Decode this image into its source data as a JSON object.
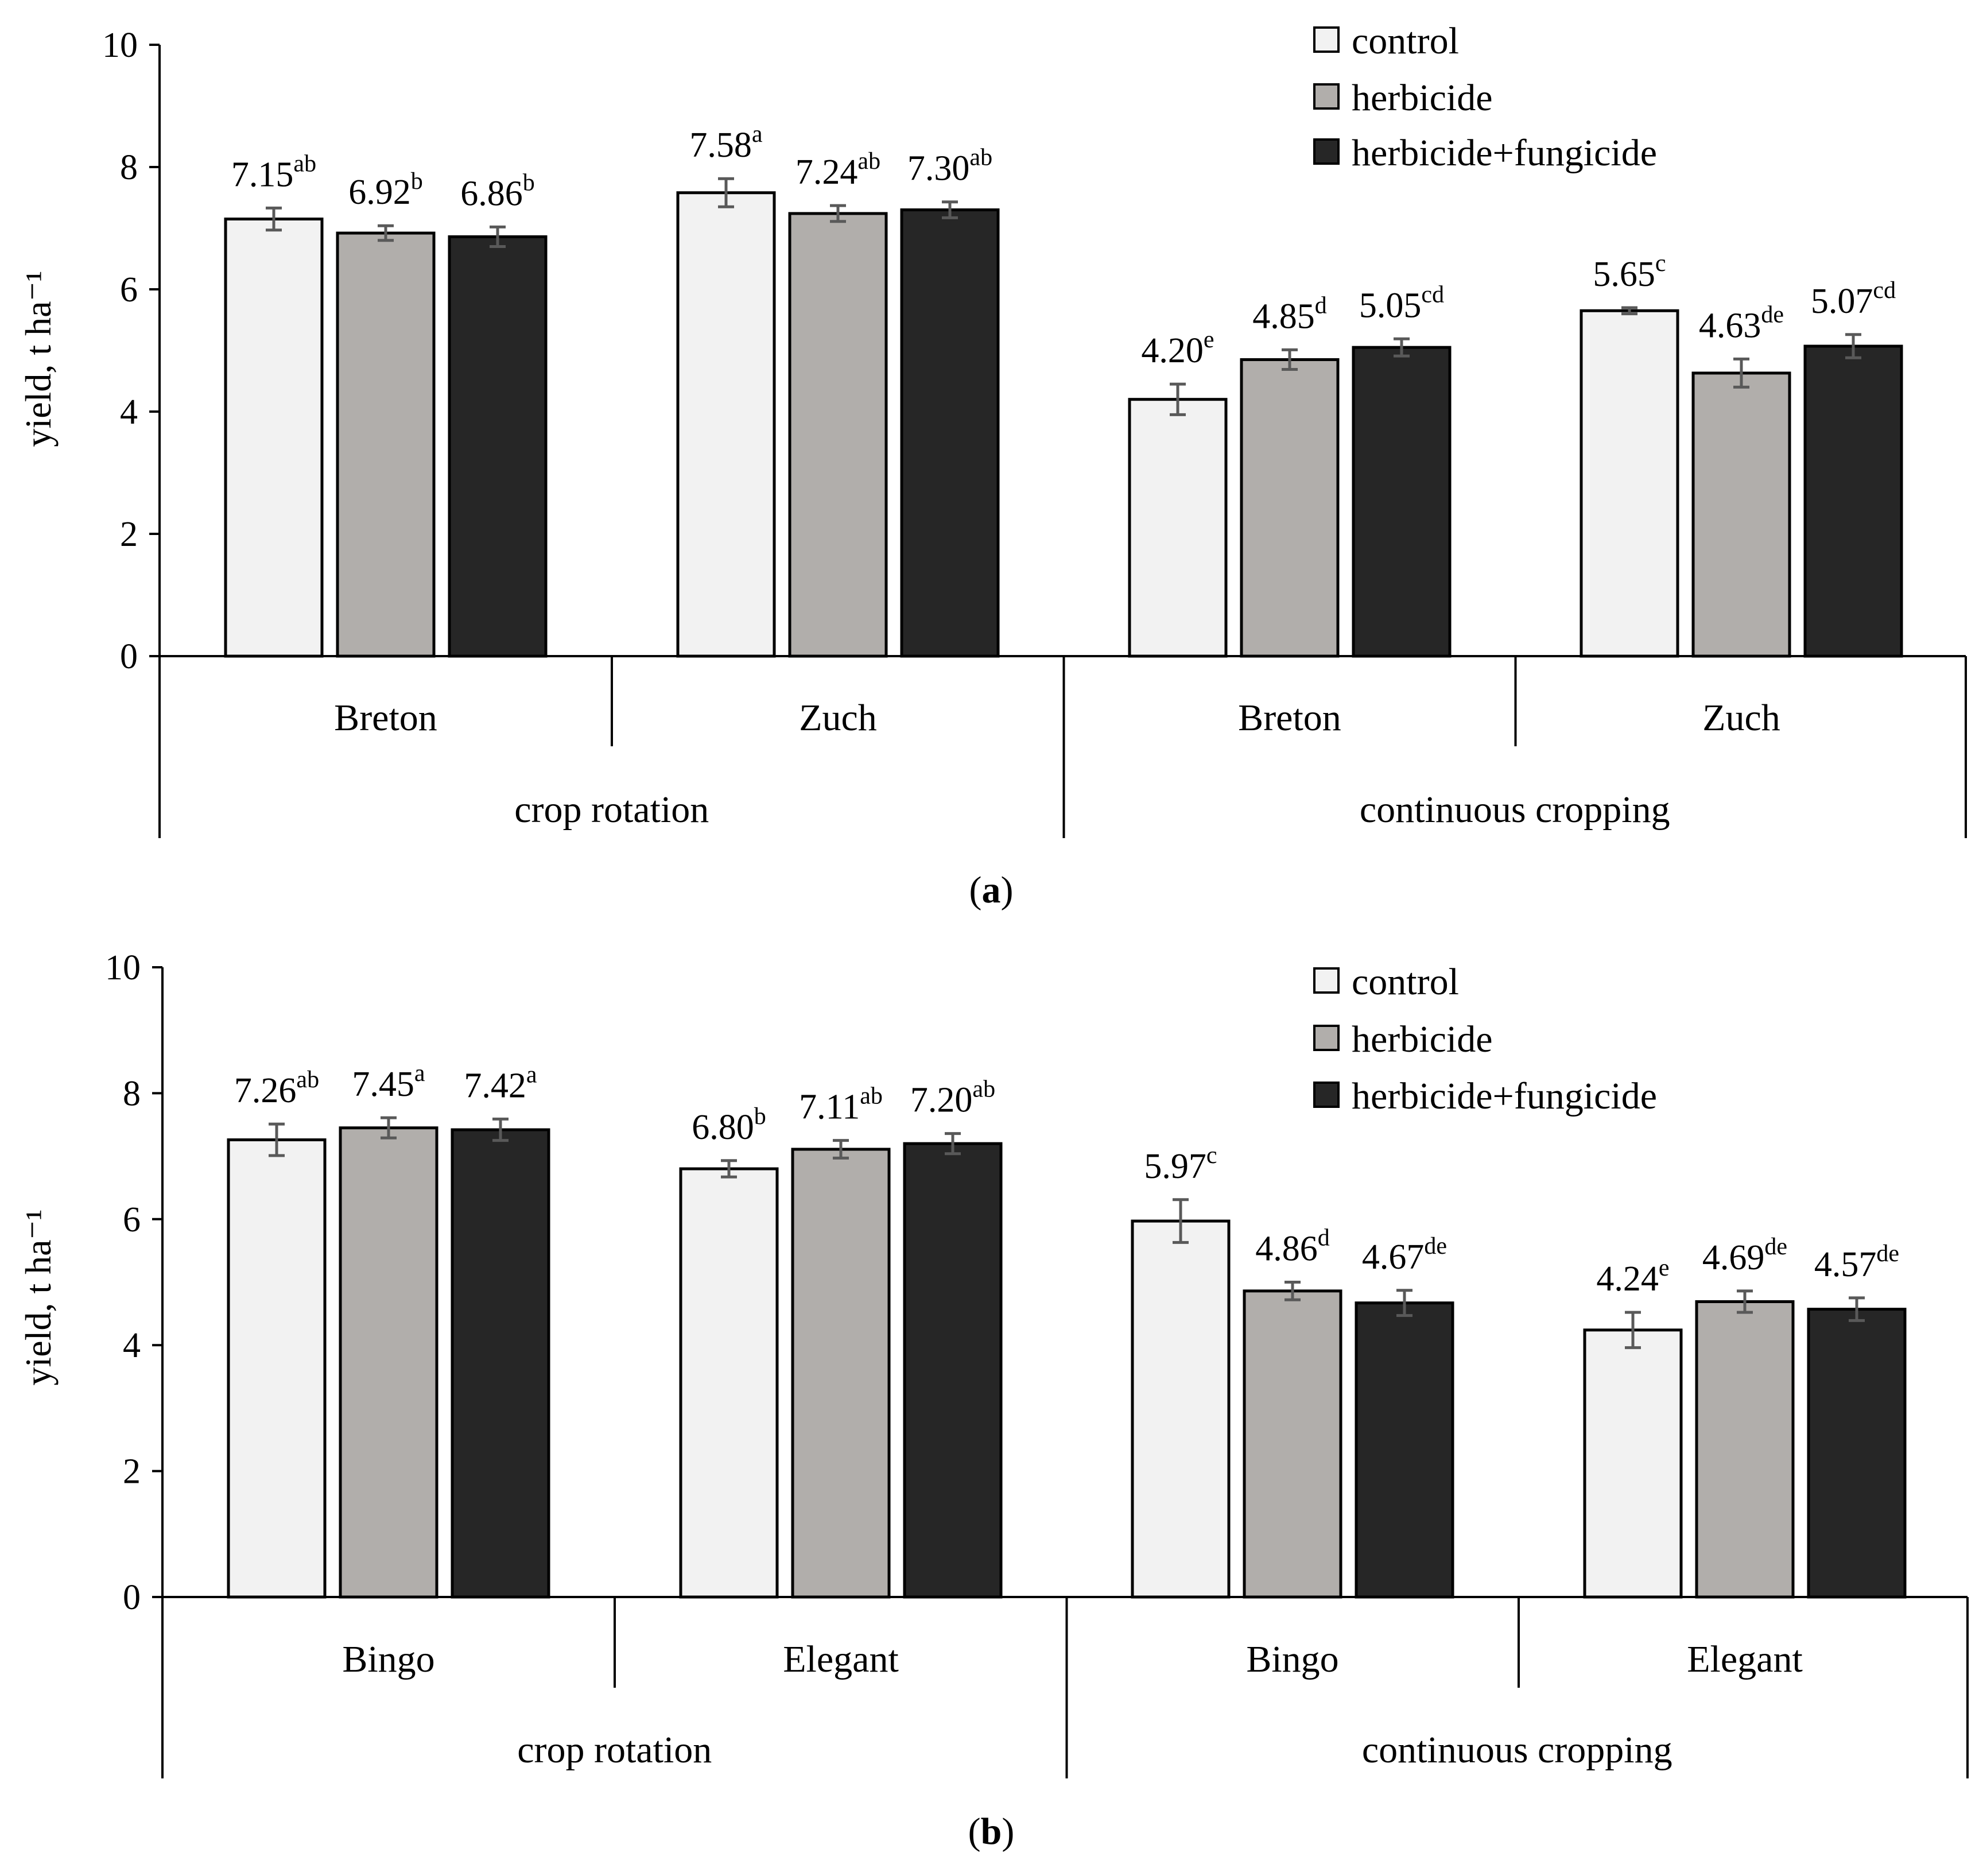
{
  "panels": [
    {
      "caption": "a",
      "ylabel": "yield, t ha⁻¹",
      "y_ticks": [
        "0",
        "2",
        "4",
        "6",
        "8",
        "10"
      ],
      "legend": [
        "control",
        "herbicide",
        "herbicide+fungicide"
      ]
    },
    {
      "caption": "b",
      "ylabel": "yield, t ha⁻¹",
      "y_ticks": [
        "0",
        "2",
        "4",
        "6",
        "8",
        "10"
      ],
      "legend": [
        "control",
        "herbicide",
        "herbicide+fungicide"
      ]
    }
  ],
  "chart_data": [
    {
      "type": "bar",
      "title": "(a)",
      "xlabel": "",
      "ylabel": "yield, t ha⁻¹",
      "ylim": [
        0,
        10
      ],
      "y_ticks": [
        0,
        2,
        4,
        6,
        8,
        10
      ],
      "legend_position": "top-right",
      "colors": [
        "#f2f2f2",
        "#b1aeab",
        "#262626"
      ],
      "groups": [
        {
          "label": "crop rotation",
          "categories": [
            "Breton",
            "Zuch"
          ]
        },
        {
          "label": "continuous cropping",
          "categories": [
            "Breton",
            "Zuch"
          ]
        }
      ],
      "series": [
        {
          "name": "control",
          "values": [
            7.15,
            7.58,
            4.2,
            5.65
          ],
          "errors": [
            0.18,
            0.23,
            0.25,
            0.05
          ],
          "letters": [
            "ab",
            "a",
            "e",
            "c"
          ],
          "labels": [
            "7.15",
            "7.58",
            "4.20",
            "5.65"
          ]
        },
        {
          "name": "herbicide",
          "values": [
            6.92,
            7.24,
            4.85,
            4.63
          ],
          "errors": [
            0.12,
            0.13,
            0.16,
            0.23
          ],
          "letters": [
            "b",
            "ab",
            "d",
            "de"
          ],
          "labels": [
            "6.92",
            "7.24",
            "4.85",
            "4.63"
          ]
        },
        {
          "name": "herbicide+fungicide",
          "values": [
            6.86,
            7.3,
            5.05,
            5.07
          ],
          "errors": [
            0.16,
            0.13,
            0.14,
            0.19
          ],
          "letters": [
            "b",
            "ab",
            "cd",
            "cd"
          ],
          "labels": [
            "6.86",
            "7.30",
            "5.05",
            "5.07"
          ]
        }
      ]
    },
    {
      "type": "bar",
      "title": "(b)",
      "xlabel": "",
      "ylabel": "yield, t ha⁻¹",
      "ylim": [
        0,
        10
      ],
      "y_ticks": [
        0,
        2,
        4,
        6,
        8,
        10
      ],
      "legend_position": "top-right",
      "colors": [
        "#f2f2f2",
        "#b1aeab",
        "#262626"
      ],
      "groups": [
        {
          "label": "crop rotation",
          "categories": [
            "Bingo",
            "Elegant"
          ]
        },
        {
          "label": "continuous cropping",
          "categories": [
            "Bingo",
            "Elegant"
          ]
        }
      ],
      "series": [
        {
          "name": "control",
          "values": [
            7.26,
            6.8,
            5.97,
            4.24
          ],
          "errors": [
            0.25,
            0.13,
            0.34,
            0.28
          ],
          "letters": [
            "ab",
            "b",
            "c",
            "e"
          ],
          "labels": [
            "7.26",
            "6.80",
            "5.97",
            "4.24"
          ]
        },
        {
          "name": "herbicide",
          "values": [
            7.45,
            7.11,
            4.86,
            4.69
          ],
          "errors": [
            0.16,
            0.14,
            0.14,
            0.17
          ],
          "letters": [
            "a",
            "ab",
            "d",
            "de"
          ],
          "labels": [
            "7.45",
            "7.11",
            "4.86",
            "4.69"
          ]
        },
        {
          "name": "herbicide+fungicide",
          "values": [
            7.42,
            7.2,
            4.67,
            4.57
          ],
          "errors": [
            0.17,
            0.16,
            0.2,
            0.18
          ],
          "letters": [
            "a",
            "ab",
            "de",
            "de"
          ],
          "labels": [
            "7.42",
            "7.20",
            "4.67",
            "4.57"
          ]
        }
      ]
    }
  ]
}
